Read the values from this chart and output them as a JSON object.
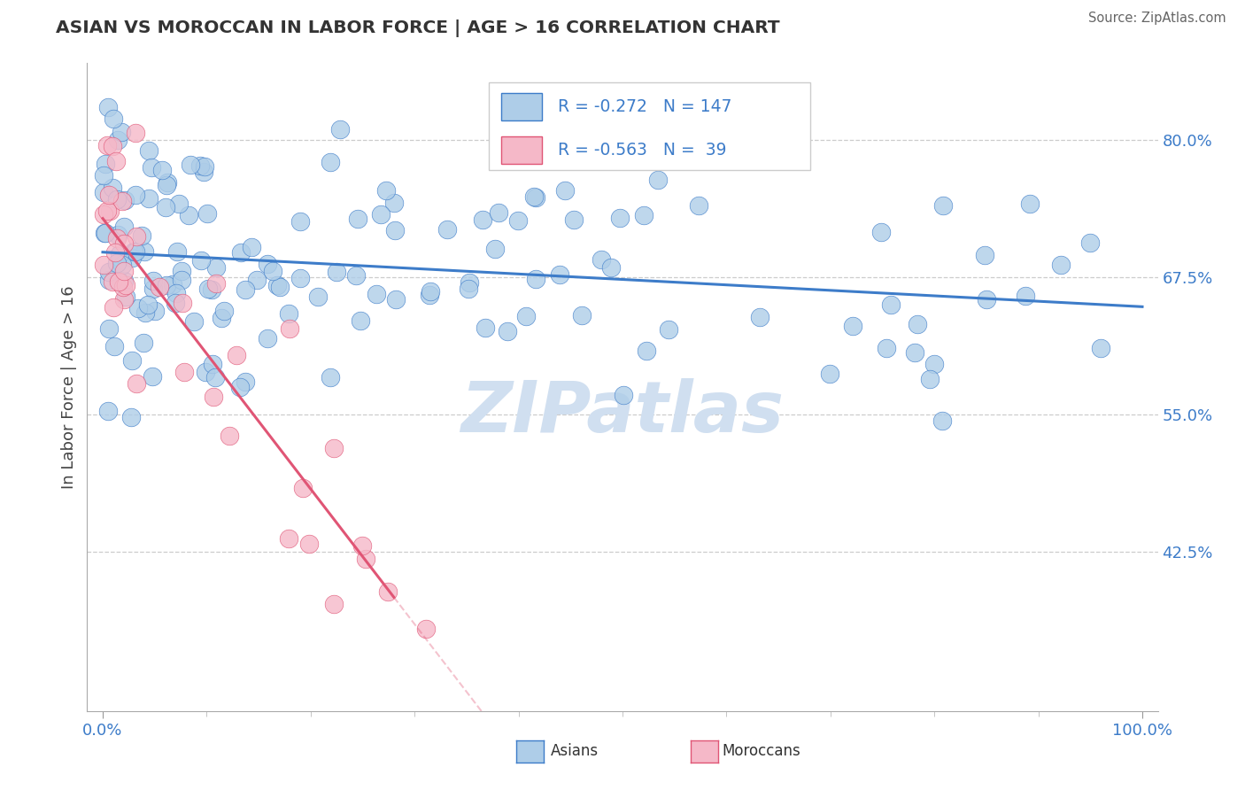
{
  "title": "ASIAN VS MOROCCAN IN LABOR FORCE | AGE > 16 CORRELATION CHART",
  "source": "Source: ZipAtlas.com",
  "ylabel": "In Labor Force | Age > 16",
  "y_ticks": [
    0.425,
    0.55,
    0.675,
    0.8
  ],
  "y_tick_labels": [
    "42.5%",
    "55.0%",
    "67.5%",
    "80.0%"
  ],
  "ylim": [
    0.28,
    0.87
  ],
  "xlim": [
    -0.015,
    1.015
  ],
  "asian_R": -0.272,
  "asian_N": 147,
  "moroccan_R": -0.563,
  "moroccan_N": 39,
  "asian_dot_color": "#aecde8",
  "moroccan_dot_color": "#f5b8c8",
  "asian_line_color": "#3d7cc9",
  "moroccan_line_color": "#e05575",
  "watermark_color": "#d0dff0",
  "watermark_text": "ZIPatlas",
  "background_color": "#ffffff",
  "grid_color": "#cccccc",
  "title_color": "#333333",
  "source_color": "#666666",
  "axis_label_color": "#3d7cc9",
  "ylabel_color": "#444444",
  "legend_asian_dot": "#aecde8",
  "legend_moroccan_dot": "#f5b8c8",
  "legend_text_color": "#3d7cc9",
  "legend_R_color": "#e05575"
}
